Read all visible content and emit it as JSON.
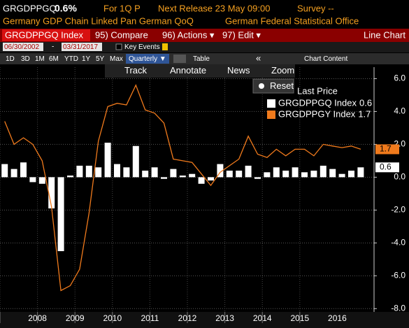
{
  "header": {
    "ticker": "GRGDPPGQ",
    "value": "0.6%",
    "period": "For 1Q P",
    "next_release": "Next Release 23 May 09:00",
    "survey": "Survey --",
    "description": "Germany GDP Chain Linked Pan German QoQ",
    "source": "German Federal Statistical Office"
  },
  "menu": {
    "security": "GRGDPPGQ Index",
    "items": [
      "95) Compare",
      "96) Actions ▾",
      "97) Edit ▾"
    ],
    "view": "Line Chart"
  },
  "range": {
    "start": "06/30/2002",
    "separator": "-",
    "end": "03/31/2017",
    "key_events": "Key Events"
  },
  "toolbar": {
    "periods": [
      "1D",
      "3D",
      "1M",
      "6M",
      "YTD",
      "1Y",
      "5Y",
      "Max"
    ],
    "frequency": "Quarterly ▼",
    "table": "Table",
    "chart_content": "Chart Content",
    "tools": [
      "Track",
      "Annotate",
      "News",
      "Zoom"
    ],
    "reset": "Reset"
  },
  "chart_data": {
    "type": "combo",
    "legend_title": "Last Price",
    "categories": [
      null,
      null,
      null,
      "2008",
      null,
      null,
      null,
      "2009",
      null,
      null,
      null,
      "2010",
      null,
      null,
      null,
      "2011",
      null,
      null,
      null,
      "2012",
      null,
      null,
      null,
      "2013",
      null,
      null,
      null,
      "2014",
      null,
      null,
      null,
      "2015",
      null,
      null,
      null,
      "2016",
      null,
      null,
      null
    ],
    "series": [
      {
        "name": "GRGDPPGQ Index",
        "type": "bar",
        "color": "#ffffff",
        "values": [
          0.8,
          0.5,
          0.9,
          -0.3,
          -0.4,
          -1.9,
          -4.5,
          0.1,
          0.7,
          0.7,
          0.6,
          2.1,
          0.8,
          0.6,
          1.9,
          0.4,
          0.6,
          -0.1,
          0.5,
          0.1,
          0.2,
          -0.4,
          -0.2,
          0.8,
          0.4,
          0.4,
          0.7,
          -0.1,
          0.3,
          0.6,
          0.4,
          0.6,
          0.3,
          0.4,
          0.7,
          0.5,
          0.2,
          0.4,
          0.6
        ]
      },
      {
        "name": "GRGDPPGY Index",
        "type": "line",
        "color": "#f07a1c",
        "values": [
          3.4,
          2.0,
          2.4,
          2.0,
          1.0,
          -1.8,
          -6.9,
          -6.6,
          -5.6,
          -2.2,
          2.2,
          4.3,
          4.5,
          4.4,
          5.6,
          4.1,
          3.9,
          3.3,
          1.1,
          1.0,
          0.9,
          0.2,
          -0.5,
          0.3,
          0.7,
          1.1,
          2.5,
          1.4,
          1.2,
          1.7,
          1.3,
          1.7,
          1.7,
          1.3,
          2.0,
          1.9,
          1.8,
          1.9,
          1.7
        ]
      }
    ],
    "ylim": [
      -8.2,
      6.7
    ],
    "yticks": [
      {
        "value": 6,
        "label": "6.0"
      },
      {
        "value": 4,
        "label": "4.0"
      },
      {
        "value": 2,
        "label": "2.0"
      },
      {
        "value": 0,
        "label": "0.0"
      },
      {
        "value": -2,
        "label": "-2.0"
      },
      {
        "value": -4,
        "label": "-4.0"
      },
      {
        "value": -6,
        "label": "-6.0"
      },
      {
        "value": -8,
        "label": "-8.0"
      }
    ],
    "grid": true
  }
}
